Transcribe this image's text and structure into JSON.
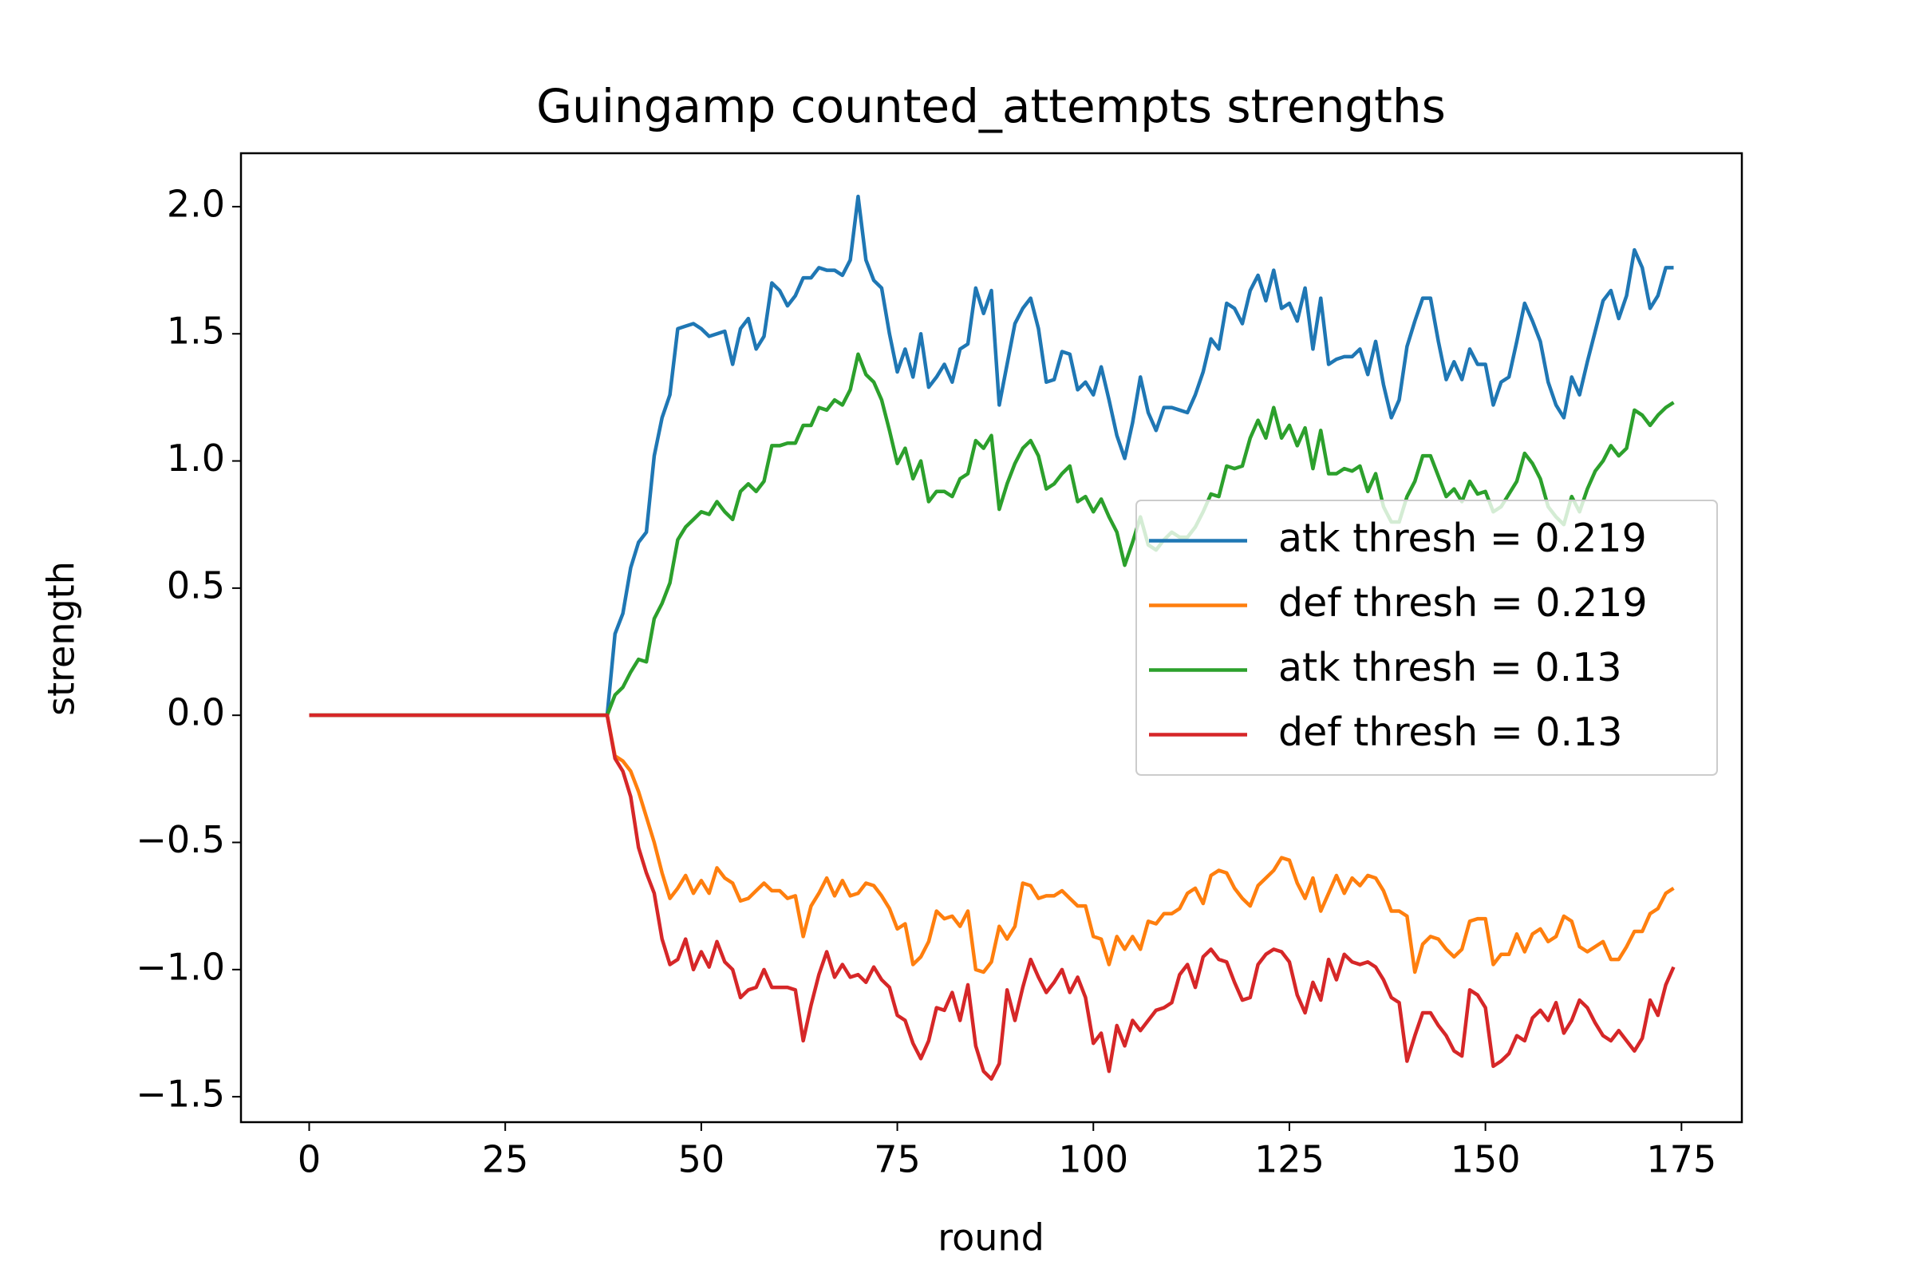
{
  "chart_data": {
    "type": "line",
    "title": "Guingamp counted_attempts strengths",
    "x_label": "round",
    "y_label": "strength",
    "x": [
      0,
      1,
      2,
      3,
      4,
      5,
      6,
      7,
      8,
      9,
      10,
      11,
      12,
      13,
      14,
      15,
      16,
      17,
      18,
      19,
      20,
      21,
      22,
      23,
      24,
      25,
      26,
      27,
      28,
      29,
      30,
      31,
      32,
      33,
      34,
      35,
      36,
      37,
      38,
      39,
      40,
      41,
      42,
      43,
      44,
      45,
      46,
      47,
      48,
      49,
      50,
      51,
      52,
      53,
      54,
      55,
      56,
      57,
      58,
      59,
      60,
      61,
      62,
      63,
      64,
      65,
      66,
      67,
      68,
      69,
      70,
      71,
      72,
      73,
      74,
      75,
      76,
      77,
      78,
      79,
      80,
      81,
      82,
      83,
      84,
      85,
      86,
      87,
      88,
      89,
      90,
      91,
      92,
      93,
      94,
      95,
      96,
      97,
      98,
      99,
      100,
      101,
      102,
      103,
      104,
      105,
      106,
      107,
      108,
      109,
      110,
      111,
      112,
      113,
      114,
      115,
      116,
      117,
      118,
      119,
      120,
      121,
      122,
      123,
      124,
      125,
      126,
      127,
      128,
      129,
      130,
      131,
      132,
      133,
      134,
      135,
      136,
      137,
      138,
      139,
      140,
      141,
      142,
      143,
      144,
      145,
      146,
      147,
      148,
      149,
      150,
      151,
      152,
      153,
      154,
      155,
      156,
      157,
      158,
      159,
      160,
      161,
      162,
      163,
      164,
      165,
      166,
      167,
      168,
      169,
      170,
      171,
      172,
      173,
      174
    ],
    "series": [
      {
        "name": "atk thresh = 0.219",
        "color": "#1f77b4",
        "values": [
          0,
          0,
          0,
          0,
          0,
          0,
          0,
          0,
          0,
          0,
          0,
          0,
          0,
          0,
          0,
          0,
          0,
          0,
          0,
          0,
          0,
          0,
          0,
          0,
          0,
          0,
          0,
          0,
          0,
          0,
          0,
          0,
          0,
          0,
          0,
          0,
          0,
          0,
          0,
          0.32,
          0.4,
          0.58,
          0.68,
          0.72,
          1.02,
          1.17,
          1.26,
          1.52,
          1.53,
          1.54,
          1.52,
          1.49,
          1.5,
          1.51,
          1.38,
          1.52,
          1.56,
          1.44,
          1.49,
          1.7,
          1.67,
          1.61,
          1.65,
          1.72,
          1.72,
          1.76,
          1.75,
          1.75,
          1.73,
          1.79,
          2.04,
          1.79,
          1.71,
          1.68,
          1.5,
          1.35,
          1.44,
          1.33,
          1.5,
          1.29,
          1.33,
          1.38,
          1.31,
          1.44,
          1.46,
          1.68,
          1.58,
          1.67,
          1.22,
          1.38,
          1.54,
          1.6,
          1.64,
          1.52,
          1.31,
          1.32,
          1.43,
          1.42,
          1.28,
          1.31,
          1.26,
          1.37,
          1.24,
          1.1,
          1.01,
          1.15,
          1.33,
          1.19,
          1.12,
          1.21,
          1.21,
          1.2,
          1.19,
          1.26,
          1.35,
          1.48,
          1.44,
          1.62,
          1.6,
          1.54,
          1.67,
          1.73,
          1.63,
          1.75,
          1.6,
          1.62,
          1.55,
          1.68,
          1.44,
          1.64,
          1.38,
          1.4,
          1.41,
          1.41,
          1.44,
          1.34,
          1.47,
          1.3,
          1.17,
          1.24,
          1.45,
          1.55,
          1.64,
          1.64,
          1.47,
          1.32,
          1.39,
          1.32,
          1.44,
          1.38,
          1.38,
          1.22,
          1.31,
          1.33,
          1.47,
          1.62,
          1.55,
          1.47,
          1.31,
          1.22,
          1.17,
          1.33,
          1.26,
          1.39,
          1.51,
          1.63,
          1.67,
          1.56,
          1.65,
          1.83,
          1.76,
          1.6,
          1.65,
          1.76,
          1.76
        ]
      },
      {
        "name": "def thresh = 0.219",
        "color": "#ff7f0e",
        "values": [
          0,
          0,
          0,
          0,
          0,
          0,
          0,
          0,
          0,
          0,
          0,
          0,
          0,
          0,
          0,
          0,
          0,
          0,
          0,
          0,
          0,
          0,
          0,
          0,
          0,
          0,
          0,
          0,
          0,
          0,
          0,
          0,
          0,
          0,
          0,
          0,
          0,
          0,
          0,
          -0.16,
          -0.18,
          -0.22,
          -0.3,
          -0.4,
          -0.5,
          -0.62,
          -0.72,
          -0.68,
          -0.63,
          -0.7,
          -0.65,
          -0.7,
          -0.6,
          -0.64,
          -0.66,
          -0.73,
          -0.72,
          -0.69,
          -0.66,
          -0.69,
          -0.69,
          -0.72,
          -0.71,
          -0.87,
          -0.75,
          -0.7,
          -0.64,
          -0.71,
          -0.65,
          -0.71,
          -0.7,
          -0.66,
          -0.67,
          -0.71,
          -0.76,
          -0.84,
          -0.82,
          -0.98,
          -0.95,
          -0.89,
          -0.77,
          -0.8,
          -0.79,
          -0.83,
          -0.77,
          -1.0,
          -1.01,
          -0.97,
          -0.83,
          -0.88,
          -0.83,
          -0.66,
          -0.67,
          -0.72,
          -0.71,
          -0.71,
          -0.69,
          -0.72,
          -0.75,
          -0.75,
          -0.87,
          -0.88,
          -0.98,
          -0.87,
          -0.92,
          -0.87,
          -0.92,
          -0.81,
          -0.82,
          -0.78,
          -0.78,
          -0.76,
          -0.7,
          -0.68,
          -0.74,
          -0.63,
          -0.61,
          -0.62,
          -0.68,
          -0.72,
          -0.75,
          -0.67,
          -0.64,
          -0.61,
          -0.56,
          -0.57,
          -0.66,
          -0.72,
          -0.64,
          -0.77,
          -0.7,
          -0.63,
          -0.7,
          -0.64,
          -0.67,
          -0.63,
          -0.64,
          -0.69,
          -0.77,
          -0.77,
          -0.79,
          -1.01,
          -0.9,
          -0.87,
          -0.88,
          -0.92,
          -0.95,
          -0.92,
          -0.81,
          -0.8,
          -0.8,
          -0.98,
          -0.94,
          -0.94,
          -0.86,
          -0.93,
          -0.86,
          -0.84,
          -0.89,
          -0.87,
          -0.79,
          -0.81,
          -0.91,
          -0.93,
          -0.91,
          -0.89,
          -0.96,
          -0.96,
          -0.91,
          -0.85,
          -0.85,
          -0.78,
          -0.76,
          -0.7,
          -0.68
        ]
      },
      {
        "name": "atk thresh = 0.13",
        "color": "#2ca02c",
        "values": [
          0,
          0,
          0,
          0,
          0,
          0,
          0,
          0,
          0,
          0,
          0,
          0,
          0,
          0,
          0,
          0,
          0,
          0,
          0,
          0,
          0,
          0,
          0,
          0,
          0,
          0,
          0,
          0,
          0,
          0,
          0,
          0,
          0,
          0,
          0,
          0,
          0,
          0,
          0,
          0.08,
          0.11,
          0.17,
          0.22,
          0.21,
          0.38,
          0.44,
          0.52,
          0.69,
          0.74,
          0.77,
          0.8,
          0.79,
          0.84,
          0.8,
          0.77,
          0.88,
          0.91,
          0.88,
          0.92,
          1.06,
          1.06,
          1.07,
          1.07,
          1.14,
          1.14,
          1.21,
          1.2,
          1.24,
          1.22,
          1.28,
          1.42,
          1.34,
          1.31,
          1.24,
          1.12,
          0.99,
          1.05,
          0.93,
          1.0,
          0.84,
          0.88,
          0.88,
          0.86,
          0.93,
          0.95,
          1.08,
          1.05,
          1.1,
          0.81,
          0.91,
          0.99,
          1.05,
          1.08,
          1.02,
          0.89,
          0.91,
          0.95,
          0.98,
          0.84,
          0.86,
          0.8,
          0.85,
          0.78,
          0.72,
          0.59,
          0.68,
          0.78,
          0.67,
          0.65,
          0.69,
          0.72,
          0.7,
          0.7,
          0.74,
          0.8,
          0.87,
          0.86,
          0.98,
          0.97,
          0.98,
          1.09,
          1.16,
          1.09,
          1.21,
          1.09,
          1.14,
          1.06,
          1.13,
          0.97,
          1.12,
          0.95,
          0.95,
          0.97,
          0.96,
          0.98,
          0.88,
          0.95,
          0.82,
          0.76,
          0.76,
          0.86,
          0.92,
          1.02,
          1.02,
          0.94,
          0.86,
          0.89,
          0.84,
          0.92,
          0.87,
          0.88,
          0.8,
          0.82,
          0.87,
          0.92,
          1.03,
          0.99,
          0.93,
          0.82,
          0.78,
          0.75,
          0.86,
          0.8,
          0.89,
          0.96,
          1.0,
          1.06,
          1.02,
          1.05,
          1.2,
          1.18,
          1.14,
          1.18,
          1.21,
          1.23
        ]
      },
      {
        "name": "def thresh = 0.13",
        "color": "#d62728",
        "values": [
          0,
          0,
          0,
          0,
          0,
          0,
          0,
          0,
          0,
          0,
          0,
          0,
          0,
          0,
          0,
          0,
          0,
          0,
          0,
          0,
          0,
          0,
          0,
          0,
          0,
          0,
          0,
          0,
          0,
          0,
          0,
          0,
          0,
          0,
          0,
          0,
          0,
          0,
          0,
          -0.17,
          -0.22,
          -0.32,
          -0.52,
          -0.62,
          -0.7,
          -0.88,
          -0.98,
          -0.96,
          -0.88,
          -1.0,
          -0.93,
          -0.99,
          -0.89,
          -0.97,
          -1.0,
          -1.11,
          -1.08,
          -1.07,
          -1.0,
          -1.07,
          -1.07,
          -1.07,
          -1.08,
          -1.28,
          -1.14,
          -1.02,
          -0.93,
          -1.03,
          -0.98,
          -1.03,
          -1.02,
          -1.05,
          -0.99,
          -1.04,
          -1.07,
          -1.18,
          -1.2,
          -1.29,
          -1.35,
          -1.28,
          -1.15,
          -1.16,
          -1.09,
          -1.2,
          -1.06,
          -1.3,
          -1.4,
          -1.43,
          -1.37,
          -1.08,
          -1.2,
          -1.07,
          -0.96,
          -1.03,
          -1.09,
          -1.05,
          -1.0,
          -1.09,
          -1.03,
          -1.11,
          -1.29,
          -1.25,
          -1.4,
          -1.22,
          -1.3,
          -1.2,
          -1.24,
          -1.2,
          -1.16,
          -1.15,
          -1.13,
          -1.02,
          -0.98,
          -1.07,
          -0.95,
          -0.92,
          -0.96,
          -0.97,
          -1.05,
          -1.12,
          -1.11,
          -0.98,
          -0.94,
          -0.92,
          -0.93,
          -0.97,
          -1.1,
          -1.17,
          -1.05,
          -1.12,
          -0.96,
          -1.04,
          -0.94,
          -0.97,
          -0.98,
          -0.97,
          -0.99,
          -1.04,
          -1.11,
          -1.13,
          -1.36,
          -1.26,
          -1.17,
          -1.17,
          -1.22,
          -1.26,
          -1.32,
          -1.34,
          -1.08,
          -1.1,
          -1.15,
          -1.38,
          -1.36,
          -1.33,
          -1.26,
          -1.28,
          -1.19,
          -1.16,
          -1.2,
          -1.13,
          -1.25,
          -1.2,
          -1.12,
          -1.15,
          -1.21,
          -1.26,
          -1.28,
          -1.24,
          -1.28,
          -1.32,
          -1.27,
          -1.12,
          -1.18,
          -1.06,
          -0.99
        ]
      }
    ],
    "xlim": [
      -8.7,
      182.7
    ],
    "ylim": [
      -1.6,
      2.21
    ],
    "xticks": [
      0,
      25,
      50,
      75,
      100,
      125,
      150,
      175
    ],
    "yticks": [
      {
        "value": -1.5,
        "label": "−1.5"
      },
      {
        "value": -1.0,
        "label": "−1.0"
      },
      {
        "value": -0.5,
        "label": "−0.5"
      },
      {
        "value": 0,
        "label": "0.0"
      },
      0.5,
      {
        "value": 1.0,
        "label": "1.0"
      },
      1.5,
      {
        "value": 2.0,
        "label": "2.0"
      }
    ],
    "grid": false,
    "legend": "center right"
  }
}
